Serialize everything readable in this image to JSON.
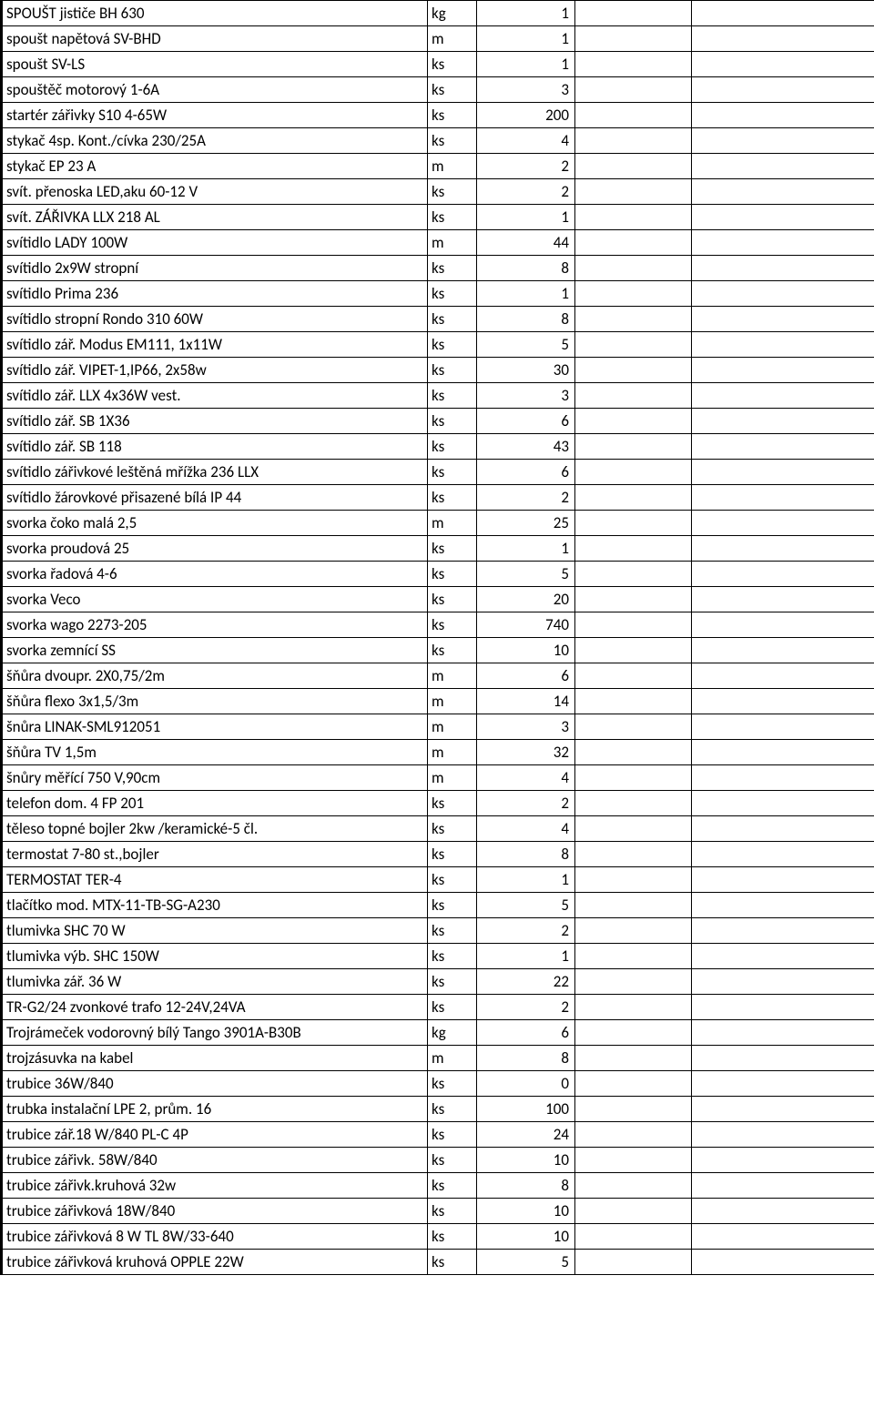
{
  "rows": [
    {
      "desc": "SPOUŠT jističe BH 630",
      "unit": "kg",
      "qty": "1"
    },
    {
      "desc": "spoušt napětová SV-BHD",
      "unit": "m",
      "qty": "1"
    },
    {
      "desc": "spoušt SV-LS",
      "unit": "ks",
      "qty": "1"
    },
    {
      "desc": "spouštěč motorový 1-6A",
      "unit": "ks",
      "qty": "3"
    },
    {
      "desc": "startér zářivky S10  4-65W",
      "unit": "ks",
      "qty": "200"
    },
    {
      "desc": "stykač  4sp. Kont./cívka 230/25A",
      "unit": "ks",
      "qty": "4"
    },
    {
      "desc": "stykač EP 23 A",
      "unit": "m",
      "qty": "2"
    },
    {
      "desc": "svít. přenoska LED,aku 60-12 V",
      "unit": "ks",
      "qty": "2"
    },
    {
      "desc": "svít. ZÁŘIVKA LLX 218 AL",
      "unit": "ks",
      "qty": "1"
    },
    {
      "desc": "svítidlo LADY 100W",
      "unit": "m",
      "qty": "44"
    },
    {
      "desc": "svítidlo 2x9W stropní",
      "unit": "ks",
      "qty": "8"
    },
    {
      "desc": "svítidlo Prima 236",
      "unit": "ks",
      "qty": "1"
    },
    {
      "desc": "svítidlo stropní Rondo 310 60W",
      "unit": "ks",
      "qty": "8"
    },
    {
      "desc": "svítidlo zář. Modus EM111, 1x11W",
      "unit": "ks",
      "qty": "5"
    },
    {
      "desc": "svítidlo zář. VIPET-1,IP66, 2x58w",
      "unit": "ks",
      "qty": "30"
    },
    {
      "desc": "svítidlo zář. LLX 4x36W vest.",
      "unit": "ks",
      "qty": "3"
    },
    {
      "desc": "svítidlo zář. SB  1X36",
      "unit": "ks",
      "qty": "6"
    },
    {
      "desc": "svítidlo zář. SB 118",
      "unit": "ks",
      "qty": "43"
    },
    {
      "desc": "svítidlo zářivkové leštěná mřížka 236 LLX",
      "unit": "ks",
      "qty": "6"
    },
    {
      "desc": "svítidlo žárovkové přisazené bílá IP 44",
      "unit": "ks",
      "qty": "2"
    },
    {
      "desc": "svorka čoko malá  2,5",
      "unit": "m",
      "qty": "25"
    },
    {
      "desc": "svorka proudová 25",
      "unit": "ks",
      "qty": "1"
    },
    {
      "desc": "svorka řadová 4-6",
      "unit": "ks",
      "qty": "5"
    },
    {
      "desc": "svorka Veco",
      "unit": "ks",
      "qty": "20"
    },
    {
      "desc": "svorka wago  2273-205",
      "unit": "ks",
      "qty": "740"
    },
    {
      "desc": "svorka zemnící  SS",
      "unit": "ks",
      "qty": "10"
    },
    {
      "desc": "šňůra dvoupr. 2X0,75/2m",
      "unit": "m",
      "qty": "6"
    },
    {
      "desc": "šňůra flexo 3x1,5/3m",
      "unit": "m",
      "qty": "14"
    },
    {
      "desc": "šnůra LINAK-SML912051",
      "unit": "m",
      "qty": "3"
    },
    {
      "desc": "šňůra TV  1,5m",
      "unit": "m",
      "qty": "32"
    },
    {
      "desc": "šnůry měřící 750 V,90cm",
      "unit": "m",
      "qty": "4"
    },
    {
      "desc": "telefon dom. 4 FP 201",
      "unit": "ks",
      "qty": "2"
    },
    {
      "desc": "těleso topné bojler 2kw /keramické-5 čl.",
      "unit": "ks",
      "qty": "4"
    },
    {
      "desc": "termostat 7-80 st.,bojler",
      "unit": "ks",
      "qty": "8"
    },
    {
      "desc": "TERMOSTAT  TER-4",
      "unit": "ks",
      "qty": "1"
    },
    {
      "desc": "tlačítko mod. MTX-11-TB-SG-A230",
      "unit": "ks",
      "qty": "5"
    },
    {
      "desc": "tlumivka SHC  70 W",
      "unit": "ks",
      "qty": "2"
    },
    {
      "desc": "tlumivka výb. SHC 150W",
      "unit": "ks",
      "qty": "1"
    },
    {
      "desc": "tlumivka zář.  36 W",
      "unit": "ks",
      "qty": "22"
    },
    {
      "desc": "TR-G2/24 zvonkové trafo 12-24V,24VA",
      "unit": "ks",
      "qty": "2"
    },
    {
      "desc": "Trojrámeček vodorovný bílý Tango 3901A-B30B",
      "unit": "kg",
      "qty": "6"
    },
    {
      "desc": "trojzásuvka na  kabel",
      "unit": "m",
      "qty": "8"
    },
    {
      "desc": "trubice 36W/840",
      "unit": "ks",
      "qty": "0"
    },
    {
      "desc": "trubka instalační LPE 2, prům. 16",
      "unit": "ks",
      "qty": "100"
    },
    {
      "desc": "trubice zář.18 W/840  PL-C 4P",
      "unit": "ks",
      "qty": "24"
    },
    {
      "desc": "trubice zářivk. 58W/840",
      "unit": "ks",
      "qty": "10"
    },
    {
      "desc": "trubice zářivk.kruhová 32w",
      "unit": "ks",
      "qty": "8"
    },
    {
      "desc": "trubice zářivková  18W/840",
      "unit": "ks",
      "qty": "10"
    },
    {
      "desc": "trubice zářivková 8 W  TL 8W/33-640",
      "unit": "ks",
      "qty": "10"
    },
    {
      "desc": "trubice zářivková kruhová  OPPLE     22W",
      "unit": "ks",
      "qty": "5"
    }
  ]
}
